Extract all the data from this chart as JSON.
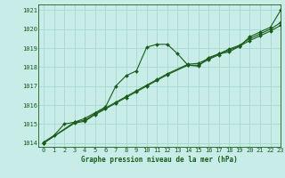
{
  "title": "Graphe pression niveau de la mer (hPa)",
  "bg_color": "#c8ece8",
  "grid_color": "#a8d8d0",
  "line_color": "#1a5c1a",
  "text_color": "#1a5c1a",
  "xlim": [
    -0.5,
    23
  ],
  "ylim": [
    1013.8,
    1021.3
  ],
  "yticks": [
    1014,
    1015,
    1016,
    1017,
    1018,
    1019,
    1020,
    1021
  ],
  "xticks": [
    0,
    1,
    2,
    3,
    4,
    5,
    6,
    7,
    8,
    9,
    10,
    11,
    12,
    13,
    14,
    15,
    16,
    17,
    18,
    19,
    20,
    21,
    22,
    23
  ],
  "series1_x": [
    0,
    1,
    2,
    3,
    4,
    5,
    6,
    7,
    8,
    9,
    10,
    11,
    12,
    13,
    14,
    15,
    16,
    17,
    18,
    19,
    20,
    21,
    22,
    23
  ],
  "series1_y": [
    1014.05,
    1014.4,
    1015.0,
    1015.1,
    1015.3,
    1015.6,
    1015.9,
    1017.0,
    1017.55,
    1017.8,
    1019.05,
    1019.2,
    1019.2,
    1018.7,
    1018.1,
    1018.05,
    1018.5,
    1018.7,
    1018.8,
    1019.1,
    1019.6,
    1019.85,
    1020.1,
    1021.0
  ],
  "series2_x": [
    0,
    3,
    4,
    5,
    6,
    7,
    8,
    9,
    10,
    11,
    12,
    14,
    15,
    16,
    17,
    18,
    19,
    20,
    21,
    22,
    23
  ],
  "series2_y": [
    1014.0,
    1015.05,
    1015.15,
    1015.5,
    1015.8,
    1016.1,
    1016.4,
    1016.7,
    1017.0,
    1017.3,
    1017.6,
    1018.1,
    1018.1,
    1018.4,
    1018.65,
    1018.9,
    1019.1,
    1019.4,
    1019.65,
    1019.9,
    1020.2
  ],
  "series3_x": [
    0,
    3,
    4,
    5,
    6,
    7,
    8,
    9,
    10,
    11,
    12,
    14,
    15,
    16,
    17,
    18,
    19,
    20,
    21,
    22,
    23
  ],
  "series3_y": [
    1014.0,
    1015.1,
    1015.2,
    1015.55,
    1015.85,
    1016.15,
    1016.45,
    1016.75,
    1017.05,
    1017.35,
    1017.65,
    1018.15,
    1018.2,
    1018.45,
    1018.7,
    1018.95,
    1019.15,
    1019.5,
    1019.75,
    1020.0,
    1020.35
  ],
  "marker": "D",
  "markersize": 2.0,
  "linewidth": 0.8,
  "tick_fontsize": 5.0,
  "label_fontsize": 5.5
}
